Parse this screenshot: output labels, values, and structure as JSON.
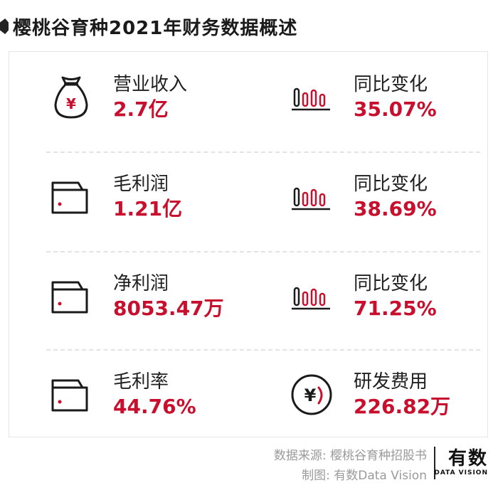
{
  "title": "樱桃谷育种2021年财务数据概述",
  "colors": {
    "accent": "#c8102e",
    "text": "#1f1f1f",
    "muted": "#9a9a9a"
  },
  "rows": [
    {
      "left": {
        "icon": "money-bag-icon",
        "label": "营业收入",
        "value": "2.7亿"
      },
      "right": {
        "icon": "bar-chart-icon",
        "label": "同比变化",
        "value": "35.07%"
      }
    },
    {
      "left": {
        "icon": "wallet-icon",
        "label": "毛利润",
        "value": "1.21亿"
      },
      "right": {
        "icon": "bar-chart-icon",
        "label": "同比变化",
        "value": "38.69%"
      }
    },
    {
      "left": {
        "icon": "wallet-icon",
        "label": "净利润",
        "value": "8053.47万"
      },
      "right": {
        "icon": "bar-chart-icon",
        "label": "同比变化",
        "value": "71.25%"
      }
    },
    {
      "left": {
        "icon": "wallet-icon",
        "label": "毛利率",
        "value": "44.76%"
      },
      "right": {
        "icon": "yen-coin-icon",
        "label": "研发费用",
        "value": "226.82万"
      }
    }
  ],
  "footer": {
    "source": "数据来源: 樱桃谷育种招股书",
    "credit": "制图: 有数Data Vision",
    "logo_main": "有数",
    "logo_sub": "DATA VISION"
  }
}
